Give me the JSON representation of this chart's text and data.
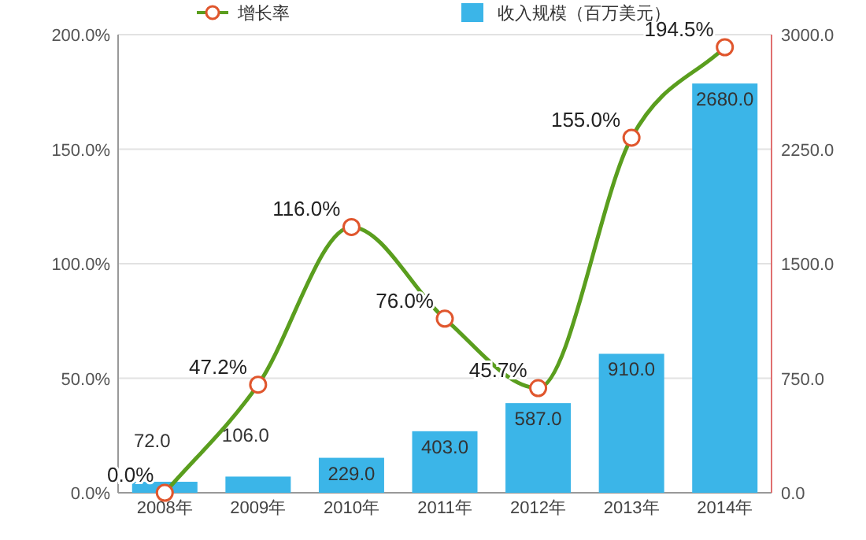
{
  "chart_data": {
    "type": "bar",
    "categories": [
      "2008年",
      "2009年",
      "2010年",
      "2011年",
      "2012年",
      "2013年",
      "2014年"
    ],
    "series": [
      {
        "name": "收入规模（百万美元）",
        "type": "bar",
        "axis": "y2",
        "color": "#3bb5e8",
        "values": [
          72.0,
          106.0,
          229.0,
          403.0,
          587.0,
          910.0,
          2680.0
        ],
        "value_labels": [
          "72.0",
          "106.0",
          "229.0",
          "403.0",
          "587.0",
          "910.0",
          "2680.0"
        ]
      },
      {
        "name": "增长率",
        "type": "line",
        "axis": "y",
        "color": "#5a9e1e",
        "marker": "circle",
        "values": [
          0.0,
          47.2,
          116.0,
          76.0,
          45.7,
          155.0,
          194.5
        ],
        "value_labels": [
          "0.0%",
          "47.2%",
          "116.0%",
          "76.0%",
          "45.7%",
          "155.0%",
          "194.5%"
        ]
      }
    ],
    "ylim": [
      0,
      200
    ],
    "yticks": [
      {
        "value": 0,
        "label": "0.0%"
      },
      {
        "value": 50,
        "label": "50.0%"
      },
      {
        "value": 100,
        "label": "100.0%"
      },
      {
        "value": 150,
        "label": "150.0%"
      },
      {
        "value": 200,
        "label": "200.0%"
      }
    ],
    "y2lim": [
      0,
      3000
    ],
    "y2ticks": [
      {
        "value": 0,
        "label": "0.0"
      },
      {
        "value": 750,
        "label": "750.0"
      },
      {
        "value": 1500,
        "label": "1500.0"
      },
      {
        "value": 2250,
        "label": "2250.0"
      },
      {
        "value": 3000,
        "label": "3000.0"
      }
    ],
    "grid": "y",
    "legend": "top"
  }
}
